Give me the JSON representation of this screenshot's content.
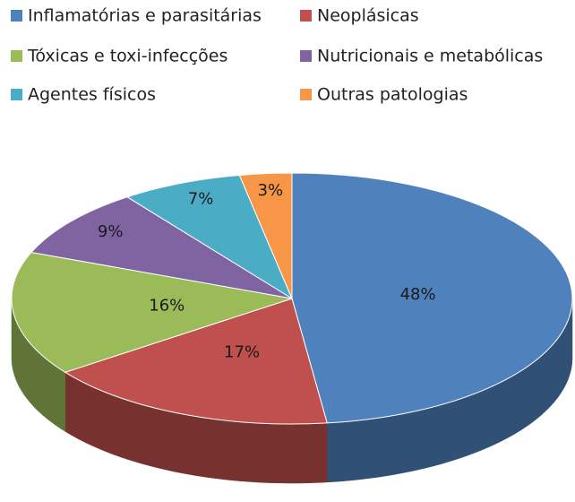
{
  "chart_data": {
    "type": "pie",
    "categories": [
      "Inflamatórias e parasitárias",
      "Neoplásicas",
      "Tóxicas e toxi-infecções",
      "Nutricionais e metabólicas",
      "Agentes físicos",
      "Outras patologias"
    ],
    "values": [
      48,
      17,
      16,
      9,
      7,
      3
    ],
    "value_labels": [
      "48%",
      "17%",
      "16%",
      "9%",
      "7%",
      "3%"
    ],
    "colors": [
      "#4f81bd",
      "#c0504d",
      "#9bbb59",
      "#8064a2",
      "#4bacc6",
      "#f79646"
    ],
    "legend": "top"
  }
}
